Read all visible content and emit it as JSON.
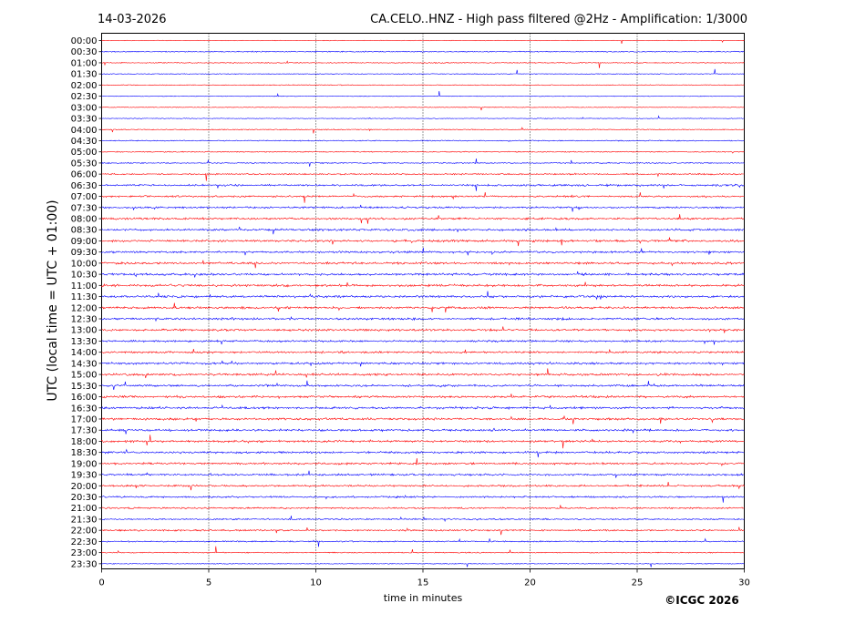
{
  "header": {
    "date": "14-03-2026",
    "title": "CA.CELO..HNZ - High pass filtered @2Hz - Amplification: 1/3000"
  },
  "chart_data": {
    "type": "line",
    "xlabel": "time in minutes",
    "ylabel": "UTC (local time = UTC + 01:00)",
    "xlim": [
      0,
      30
    ],
    "x_ticks": [
      "0",
      "5",
      "10",
      "15",
      "20",
      "25",
      "30"
    ],
    "x_gridlines": [
      5,
      10,
      15,
      20,
      25
    ],
    "grid": "vertical dotted",
    "row_labels": [
      "00:00",
      "00:30",
      "01:00",
      "01:30",
      "02:00",
      "02:30",
      "03:00",
      "03:30",
      "04:00",
      "04:30",
      "05:00",
      "05:30",
      "06:00",
      "06:30",
      "07:00",
      "07:30",
      "08:00",
      "08:30",
      "09:00",
      "09:30",
      "10:00",
      "10:30",
      "11:00",
      "11:30",
      "12:00",
      "12:30",
      "13:00",
      "13:30",
      "14:00",
      "14:30",
      "15:00",
      "15:30",
      "16:00",
      "16:30",
      "17:00",
      "17:30",
      "18:00",
      "18:30",
      "19:00",
      "19:30",
      "20:00",
      "20:30",
      "21:00",
      "21:30",
      "22:00",
      "22:30",
      "23:00",
      "23:30"
    ],
    "series_colors": [
      "#ff0000",
      "#0000ff"
    ],
    "activity_level": [
      0.05,
      0.25,
      0.2,
      0.12,
      0.15,
      0.05,
      0.04,
      0.1,
      0.2,
      0.25,
      0.25,
      0.3,
      0.4,
      0.6,
      0.55,
      0.6,
      0.65,
      0.7,
      0.75,
      0.7,
      0.75,
      0.75,
      0.8,
      0.75,
      0.75,
      0.75,
      0.7,
      0.6,
      0.65,
      0.7,
      0.75,
      0.7,
      0.75,
      0.75,
      0.75,
      0.75,
      0.7,
      0.7,
      0.7,
      0.65,
      0.6,
      0.55,
      0.5,
      0.45,
      0.5,
      0.35,
      0.25,
      0.15
    ]
  },
  "footer": {
    "copyright": "©ICGC 2026"
  }
}
